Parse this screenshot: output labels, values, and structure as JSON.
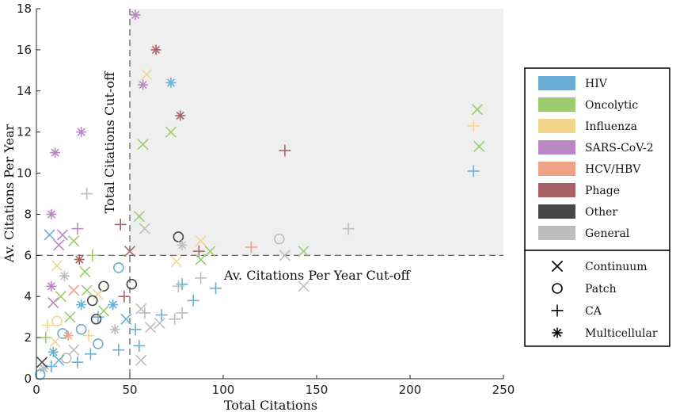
{
  "chart_data": {
    "type": "scatter",
    "xlabel": "Total Citations",
    "ylabel": "Av. Citations Per Year",
    "xlim": [
      0,
      250
    ],
    "ylim": [
      0,
      18
    ],
    "xticks": [
      0,
      50,
      100,
      150,
      200,
      250
    ],
    "yticks": [
      0,
      2,
      4,
      6,
      8,
      10,
      12,
      14,
      16,
      18
    ],
    "cutoffs": {
      "total_citations": 50,
      "av_citations_per_year": 6,
      "total_label": "Total Citations Cut-off",
      "year_label": "Av. Citations Per Year Cut-off",
      "highlight_region": "x >= 50 and y >= 6"
    },
    "category_legend": [
      {
        "name": "HIV",
        "color": "#6aaed6"
      },
      {
        "name": "Oncolytic",
        "color": "#9ccc6e"
      },
      {
        "name": "Influenza",
        "color": "#f2d68c"
      },
      {
        "name": "SARS-CoV-2",
        "color": "#b987c1"
      },
      {
        "name": "HCV/HBV",
        "color": "#f0a286"
      },
      {
        "name": "Phage",
        "color": "#a86464"
      },
      {
        "name": "Other",
        "color": "#474747"
      },
      {
        "name": "General",
        "color": "#bdbdbd"
      }
    ],
    "marker_legend": [
      {
        "name": "Continuum",
        "marker": "x"
      },
      {
        "name": "Patch",
        "marker": "o"
      },
      {
        "name": "CA",
        "marker": "+"
      },
      {
        "name": "Multicellular",
        "marker": "*"
      }
    ],
    "points": [
      {
        "x": 53,
        "y": 17.7,
        "category": "SARS-CoV-2",
        "marker": "*"
      },
      {
        "x": 64,
        "y": 16.0,
        "category": "Phage",
        "marker": "*"
      },
      {
        "x": 59,
        "y": 14.8,
        "category": "Influenza",
        "marker": "x"
      },
      {
        "x": 72,
        "y": 14.4,
        "category": "HIV",
        "marker": "*"
      },
      {
        "x": 57,
        "y": 14.3,
        "category": "SARS-CoV-2",
        "marker": "*"
      },
      {
        "x": 77,
        "y": 12.8,
        "category": "Phage",
        "marker": "*"
      },
      {
        "x": 72,
        "y": 12.0,
        "category": "Oncolytic",
        "marker": "x"
      },
      {
        "x": 57,
        "y": 11.4,
        "category": "Oncolytic",
        "marker": "x"
      },
      {
        "x": 133,
        "y": 11.1,
        "category": "Phage",
        "marker": "+"
      },
      {
        "x": 236,
        "y": 13.1,
        "category": "Oncolytic",
        "marker": "x"
      },
      {
        "x": 234,
        "y": 12.3,
        "category": "Influenza",
        "marker": "+"
      },
      {
        "x": 237,
        "y": 11.3,
        "category": "Oncolytic",
        "marker": "x"
      },
      {
        "x": 234,
        "y": 10.1,
        "category": "HIV",
        "marker": "+"
      },
      {
        "x": 167,
        "y": 7.3,
        "category": "General",
        "marker": "+"
      },
      {
        "x": 130,
        "y": 6.8,
        "category": "General",
        "marker": "o"
      },
      {
        "x": 76,
        "y": 6.9,
        "category": "Other",
        "marker": "o"
      },
      {
        "x": 88,
        "y": 6.7,
        "category": "Influenza",
        "marker": "x"
      },
      {
        "x": 78,
        "y": 6.5,
        "category": "General",
        "marker": "*"
      },
      {
        "x": 115,
        "y": 6.4,
        "category": "HCV/HBV",
        "marker": "+"
      },
      {
        "x": 93,
        "y": 6.2,
        "category": "Oncolytic",
        "marker": "x"
      },
      {
        "x": 143,
        "y": 6.2,
        "category": "Oncolytic",
        "marker": "x"
      },
      {
        "x": 133,
        "y": 6.0,
        "category": "General",
        "marker": "x"
      },
      {
        "x": 87,
        "y": 6.2,
        "category": "Phage",
        "marker": "+"
      },
      {
        "x": 55,
        "y": 7.9,
        "category": "Oncolytic",
        "marker": "x"
      },
      {
        "x": 58,
        "y": 7.3,
        "category": "General",
        "marker": "x"
      },
      {
        "x": 50,
        "y": 6.2,
        "category": "Phage",
        "marker": "x"
      },
      {
        "x": 75,
        "y": 5.7,
        "category": "Influenza",
        "marker": "x"
      },
      {
        "x": 88,
        "y": 5.8,
        "category": "Oncolytic",
        "marker": "x"
      },
      {
        "x": 45,
        "y": 7.5,
        "category": "Phage",
        "marker": "+"
      },
      {
        "x": 27,
        "y": 9.0,
        "category": "General",
        "marker": "+"
      },
      {
        "x": 10,
        "y": 11.0,
        "category": "SARS-CoV-2",
        "marker": "*"
      },
      {
        "x": 24,
        "y": 12.0,
        "category": "SARS-CoV-2",
        "marker": "*"
      },
      {
        "x": 8,
        "y": 8.0,
        "category": "SARS-CoV-2",
        "marker": "*"
      },
      {
        "x": 7,
        "y": 7.0,
        "category": "HIV",
        "marker": "x"
      },
      {
        "x": 22,
        "y": 7.3,
        "category": "SARS-CoV-2",
        "marker": "+"
      },
      {
        "x": 20,
        "y": 6.7,
        "category": "Oncolytic",
        "marker": "x"
      },
      {
        "x": 12,
        "y": 6.5,
        "category": "SARS-CoV-2",
        "marker": "x"
      },
      {
        "x": 14,
        "y": 7.0,
        "category": "SARS-CoV-2",
        "marker": "x"
      },
      {
        "x": 30,
        "y": 6.0,
        "category": "Oncolytic",
        "marker": "+"
      },
      {
        "x": 23,
        "y": 5.8,
        "category": "Phage",
        "marker": "*"
      },
      {
        "x": 11,
        "y": 5.5,
        "category": "Influenza",
        "marker": "x"
      },
      {
        "x": 44,
        "y": 5.4,
        "category": "HIV",
        "marker": "o"
      },
      {
        "x": 26,
        "y": 5.2,
        "category": "Oncolytic",
        "marker": "x"
      },
      {
        "x": 15,
        "y": 5.0,
        "category": "General",
        "marker": "*"
      },
      {
        "x": 36,
        "y": 4.5,
        "category": "Other",
        "marker": "o"
      },
      {
        "x": 51,
        "y": 4.6,
        "category": "Other",
        "marker": "o"
      },
      {
        "x": 8,
        "y": 4.5,
        "category": "SARS-CoV-2",
        "marker": "*"
      },
      {
        "x": 33,
        "y": 4.1,
        "category": "Influenza",
        "marker": "x"
      },
      {
        "x": 47,
        "y": 4.0,
        "category": "Phage",
        "marker": "+"
      },
      {
        "x": 30,
        "y": 3.8,
        "category": "Other",
        "marker": "o"
      },
      {
        "x": 24,
        "y": 3.6,
        "category": "HIV",
        "marker": "*"
      },
      {
        "x": 41,
        "y": 3.6,
        "category": "HIV",
        "marker": "*"
      },
      {
        "x": 9,
        "y": 3.7,
        "category": "SARS-CoV-2",
        "marker": "x"
      },
      {
        "x": 56,
        "y": 3.4,
        "category": "General",
        "marker": "x"
      },
      {
        "x": 33,
        "y": 3.0,
        "category": "HIV",
        "marker": "+"
      },
      {
        "x": 32,
        "y": 2.9,
        "category": "Other",
        "marker": "o"
      },
      {
        "x": 48,
        "y": 2.9,
        "category": "HIV",
        "marker": "x"
      },
      {
        "x": 58,
        "y": 3.2,
        "category": "General",
        "marker": "+"
      },
      {
        "x": 67,
        "y": 3.1,
        "category": "HIV",
        "marker": "+"
      },
      {
        "x": 78,
        "y": 3.2,
        "category": "General",
        "marker": "+"
      },
      {
        "x": 11,
        "y": 2.8,
        "category": "Influenza",
        "marker": "o"
      },
      {
        "x": 24,
        "y": 2.4,
        "category": "HIV",
        "marker": "o"
      },
      {
        "x": 42,
        "y": 2.4,
        "category": "General",
        "marker": "*"
      },
      {
        "x": 53,
        "y": 2.4,
        "category": "HIV",
        "marker": "+"
      },
      {
        "x": 61,
        "y": 2.5,
        "category": "General",
        "marker": "x"
      },
      {
        "x": 66,
        "y": 2.7,
        "category": "General",
        "marker": "x"
      },
      {
        "x": 74,
        "y": 2.9,
        "category": "General",
        "marker": "+"
      },
      {
        "x": 14,
        "y": 2.2,
        "category": "HIV",
        "marker": "o"
      },
      {
        "x": 17,
        "y": 2.1,
        "category": "HCV/HBV",
        "marker": "*"
      },
      {
        "x": 5,
        "y": 2.0,
        "category": "Oncolytic",
        "marker": "+"
      },
      {
        "x": 33,
        "y": 1.7,
        "category": "HIV",
        "marker": "o"
      },
      {
        "x": 44,
        "y": 1.4,
        "category": "HIV",
        "marker": "+"
      },
      {
        "x": 55,
        "y": 1.6,
        "category": "HIV",
        "marker": "+"
      },
      {
        "x": 20,
        "y": 1.4,
        "category": "General",
        "marker": "x"
      },
      {
        "x": 29,
        "y": 1.2,
        "category": "HIV",
        "marker": "+"
      },
      {
        "x": 9,
        "y": 1.3,
        "category": "HIV",
        "marker": "*"
      },
      {
        "x": 16,
        "y": 1.0,
        "category": "General",
        "marker": "o"
      },
      {
        "x": 22,
        "y": 0.8,
        "category": "HIV",
        "marker": "+"
      },
      {
        "x": 12,
        "y": 0.9,
        "category": "HIV",
        "marker": "x"
      },
      {
        "x": 56,
        "y": 0.9,
        "category": "General",
        "marker": "x"
      },
      {
        "x": 8,
        "y": 0.6,
        "category": "HIV",
        "marker": "+"
      },
      {
        "x": 4,
        "y": 0.5,
        "category": "General",
        "marker": "*"
      },
      {
        "x": 2,
        "y": 0.2,
        "category": "HIV",
        "marker": "o"
      },
      {
        "x": 3,
        "y": 0.8,
        "category": "Other",
        "marker": "x"
      },
      {
        "x": 96,
        "y": 4.4,
        "category": "HIV",
        "marker": "+"
      },
      {
        "x": 84,
        "y": 3.8,
        "category": "HIV",
        "marker": "+"
      },
      {
        "x": 78,
        "y": 4.6,
        "category": "HIV",
        "marker": "+"
      },
      {
        "x": 76,
        "y": 4.5,
        "category": "General",
        "marker": "+"
      },
      {
        "x": 88,
        "y": 4.9,
        "category": "General",
        "marker": "+"
      },
      {
        "x": 143,
        "y": 4.5,
        "category": "General",
        "marker": "x"
      },
      {
        "x": 6,
        "y": 2.6,
        "category": "Influenza",
        "marker": "+"
      },
      {
        "x": 18,
        "y": 3.0,
        "category": "Oncolytic",
        "marker": "x"
      },
      {
        "x": 13,
        "y": 4.0,
        "category": "Oncolytic",
        "marker": "x"
      },
      {
        "x": 20,
        "y": 4.3,
        "category": "HCV/HBV",
        "marker": "x"
      },
      {
        "x": 27,
        "y": 4.3,
        "category": "Oncolytic",
        "marker": "x"
      },
      {
        "x": 36,
        "y": 3.3,
        "category": "Oncolytic",
        "marker": "x"
      },
      {
        "x": 10,
        "y": 1.8,
        "category": "Influenza",
        "marker": "x"
      },
      {
        "x": 28,
        "y": 2.1,
        "category": "Influenza",
        "marker": "+"
      }
    ]
  }
}
